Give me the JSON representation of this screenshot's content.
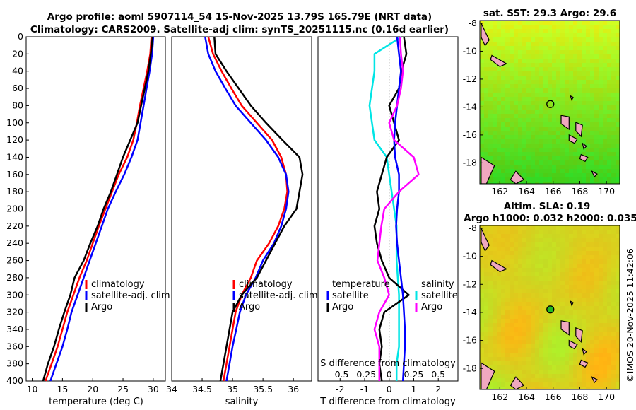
{
  "title": {
    "line1": "Argo profile: aoml 5907114_54 15-Nov-2025 13.79S 165.79E (NRT data)",
    "line2": "Climatology: CARS2009. Satellite-adj clim: synTS_20251115.nc (0.16d earlier)"
  },
  "timestamp": "©IMOS 20-Nov-2025 11:42:06",
  "colors": {
    "climatology": "#ff0000",
    "satellite": "#0000ff",
    "argo": "#000000",
    "t_diff": "#00e5e5",
    "s_diff": "#ff00ff",
    "s_diff_sat": "#0000ff"
  },
  "chart_data": [
    {
      "id": "temperature",
      "type": "line",
      "xlabel": "temperature (deg C)",
      "xlim": [
        9,
        32
      ],
      "xticks": [
        "10",
        "15",
        "20",
        "25",
        "30"
      ],
      "ylim": [
        0,
        400
      ],
      "yticks": [
        "0",
        "20",
        "40",
        "60",
        "80",
        "100",
        "120",
        "140",
        "160",
        "180",
        "200",
        "220",
        "240",
        "260",
        "280",
        "300",
        "320",
        "340",
        "360",
        "380",
        "400"
      ],
      "legend": [
        "climatology",
        "satellite-adj. clim",
        "Argo"
      ],
      "series": [
        {
          "name": "climatology",
          "color": "#ff0000",
          "depth": [
            0,
            20,
            40,
            60,
            80,
            100,
            120,
            140,
            160,
            180,
            200,
            220,
            240,
            260,
            280,
            300,
            320,
            340,
            360,
            380,
            400
          ],
          "values": [
            29.7,
            29.5,
            29.0,
            28.4,
            27.8,
            27.3,
            26.7,
            25.7,
            24.3,
            23.2,
            22.1,
            21.0,
            20.0,
            19.0,
            17.8,
            16.8,
            15.8,
            15.0,
            14.2,
            13.2,
            12.2
          ]
        },
        {
          "name": "satellite-adj. clim",
          "color": "#0000ff",
          "depth": [
            0,
            20,
            40,
            60,
            80,
            100,
            120,
            140,
            160,
            180,
            200,
            220,
            240,
            260,
            280,
            300,
            320,
            340,
            360,
            380,
            400
          ],
          "values": [
            30.0,
            29.8,
            29.4,
            28.9,
            28.4,
            27.9,
            27.4,
            26.4,
            25.2,
            23.8,
            22.5,
            21.5,
            20.5,
            19.5,
            18.5,
            17.5,
            16.5,
            15.8,
            15.0,
            14.0,
            13.0
          ]
        },
        {
          "name": "Argo",
          "color": "#000000",
          "depth": [
            0,
            20,
            40,
            60,
            80,
            100,
            120,
            140,
            160,
            180,
            200,
            220,
            240,
            260,
            280,
            300,
            320,
            340,
            360,
            380,
            400
          ],
          "values": [
            29.9,
            29.6,
            29.2,
            28.6,
            28.0,
            27.4,
            26.2,
            25.0,
            24.0,
            23.0,
            21.8,
            20.8,
            19.6,
            18.5,
            17.0,
            16.3,
            15.3,
            14.4,
            13.6,
            12.6,
            11.8
          ]
        }
      ]
    },
    {
      "id": "salinity",
      "type": "line",
      "xlabel": "salinity",
      "xlim": [
        34,
        36.3
      ],
      "xticks": [
        "34",
        "34.5",
        "35",
        "35.5",
        "36"
      ],
      "ylim": [
        0,
        400
      ],
      "legend": [
        "climatology",
        "satellite-adj. clim",
        "Argo"
      ],
      "series": [
        {
          "name": "climatology",
          "color": "#ff0000",
          "depth": [
            0,
            20,
            40,
            60,
            80,
            100,
            120,
            140,
            160,
            180,
            200,
            220,
            240,
            260,
            280,
            300,
            320,
            340,
            360,
            380,
            400
          ],
          "values": [
            34.6,
            34.68,
            34.82,
            34.98,
            35.15,
            35.4,
            35.65,
            35.8,
            35.88,
            35.9,
            35.85,
            35.75,
            35.6,
            35.4,
            35.3,
            35.15,
            35.05,
            35.0,
            34.95,
            34.9,
            34.85
          ]
        },
        {
          "name": "satellite-adj. clim",
          "color": "#0000ff",
          "depth": [
            0,
            20,
            40,
            60,
            80,
            100,
            120,
            140,
            160,
            180,
            200,
            220,
            240,
            260,
            280,
            300,
            320,
            340,
            360,
            380,
            400
          ],
          "values": [
            34.55,
            34.6,
            34.72,
            34.88,
            35.05,
            35.3,
            35.55,
            35.75,
            35.88,
            35.92,
            35.88,
            35.8,
            35.68,
            35.5,
            35.38,
            35.22,
            35.12,
            35.06,
            35.0,
            34.95,
            34.9
          ]
        },
        {
          "name": "Argo",
          "color": "#000000",
          "depth": [
            0,
            20,
            40,
            60,
            80,
            100,
            120,
            140,
            160,
            180,
            200,
            220,
            240,
            260,
            280,
            300,
            320,
            340,
            360,
            380,
            400
          ],
          "values": [
            34.7,
            34.72,
            34.9,
            35.1,
            35.3,
            35.55,
            35.82,
            36.1,
            36.15,
            36.1,
            36.05,
            35.85,
            35.7,
            35.55,
            35.4,
            35.15,
            35.0,
            34.95,
            34.9,
            34.85,
            34.8
          ]
        }
      ]
    },
    {
      "id": "differences",
      "type": "line",
      "xlabel": "T difference from climatology",
      "xlabel_top": "S difference from climatology",
      "xlim": [
        -2.9,
        2.8
      ],
      "xticks": [
        "-2",
        "-1",
        "0",
        "1",
        "2"
      ],
      "xticks_top": [
        "-0.5",
        "-0.25",
        "0",
        "0.25",
        "0.5"
      ],
      "ylim": [
        0,
        400
      ],
      "legend_left_title": "temperature",
      "legend_left": [
        "satellite",
        "Argo"
      ],
      "legend_right_title": "salinity",
      "legend_right": [
        "satellite",
        "Argo"
      ],
      "series": [
        {
          "name": "temperature satellite",
          "color": "#00e5e5",
          "depth": [
            0,
            20,
            40,
            60,
            80,
            100,
            120,
            140,
            160,
            180,
            200,
            220,
            240,
            260,
            280,
            300,
            320,
            340,
            360,
            380,
            400
          ],
          "values": [
            0.5,
            -0.6,
            -0.6,
            -0.7,
            -0.8,
            -0.7,
            -0.6,
            -0.1,
            0.0,
            0.1,
            0.2,
            0.3,
            0.3,
            0.3,
            0.35,
            0.4,
            0.4,
            0.4,
            0.4,
            0.3,
            0.3
          ]
        },
        {
          "name": "temperature Argo",
          "color": "#000000",
          "depth": [
            0,
            20,
            40,
            60,
            80,
            100,
            120,
            140,
            160,
            180,
            200,
            220,
            240,
            260,
            280,
            300,
            320,
            340,
            360,
            380,
            400
          ],
          "values": [
            0.6,
            0.7,
            0.5,
            0.4,
            0.0,
            0.2,
            0.4,
            -0.1,
            -0.3,
            -0.5,
            -0.4,
            -0.6,
            -0.5,
            -0.3,
            0.0,
            0.8,
            -0.2,
            -0.4,
            -0.3,
            -0.4,
            -0.3
          ]
        },
        {
          "name": "salinity satellite",
          "color": "#0000ff",
          "depth": [
            0,
            20,
            40,
            60,
            80,
            100,
            120,
            140,
            160,
            180,
            200,
            220,
            240,
            260,
            280,
            300,
            320,
            340,
            360,
            380,
            400
          ],
          "values": [
            0.08,
            0.1,
            0.12,
            0.1,
            0.08,
            0.06,
            0.05,
            0.06,
            0.1,
            0.1,
            0.08,
            0.07,
            0.08,
            0.1,
            0.12,
            0.14,
            0.15,
            0.16,
            0.16,
            0.15,
            0.14
          ]
        },
        {
          "name": "salinity Argo",
          "color": "#ff00ff",
          "depth": [
            0,
            20,
            40,
            60,
            80,
            100,
            120,
            140,
            160,
            180,
            200,
            220,
            240,
            260,
            280,
            300,
            320,
            340,
            360,
            380,
            400
          ],
          "values": [
            0.11,
            0.12,
            0.14,
            0.12,
            0.08,
            0.0,
            0.05,
            0.25,
            0.3,
            0.1,
            -0.05,
            -0.08,
            -0.1,
            -0.12,
            -0.05,
            0.0,
            -0.1,
            -0.15,
            -0.1,
            -0.1,
            -0.1
          ]
        }
      ]
    },
    {
      "id": "sst_map",
      "type": "heatmap",
      "title": "sat. SST: 29.3 Argo: 29.6",
      "xticks": [
        "162",
        "164",
        "166",
        "168",
        "170"
      ],
      "yticks": [
        "-8",
        "-10",
        "-12",
        "-14",
        "-16",
        "-18"
      ],
      "xlim": [
        160.5,
        171
      ],
      "ylim": [
        -19.5,
        -7.8
      ],
      "float_position": {
        "lon": 165.79,
        "lat": -13.79
      }
    },
    {
      "id": "sla_map",
      "type": "heatmap",
      "title_line1": "Altim. SLA: 0.19",
      "title_line2": "Argo h1000: 0.032 h2000: 0.035",
      "xticks": [
        "162",
        "164",
        "166",
        "168",
        "170"
      ],
      "yticks": [
        "-8",
        "-10",
        "-12",
        "-14",
        "-16",
        "-18"
      ],
      "xlim": [
        160.5,
        171
      ],
      "ylim": [
        -19.5,
        -7.8
      ],
      "float_position": {
        "lon": 165.79,
        "lat": -13.79
      }
    }
  ]
}
